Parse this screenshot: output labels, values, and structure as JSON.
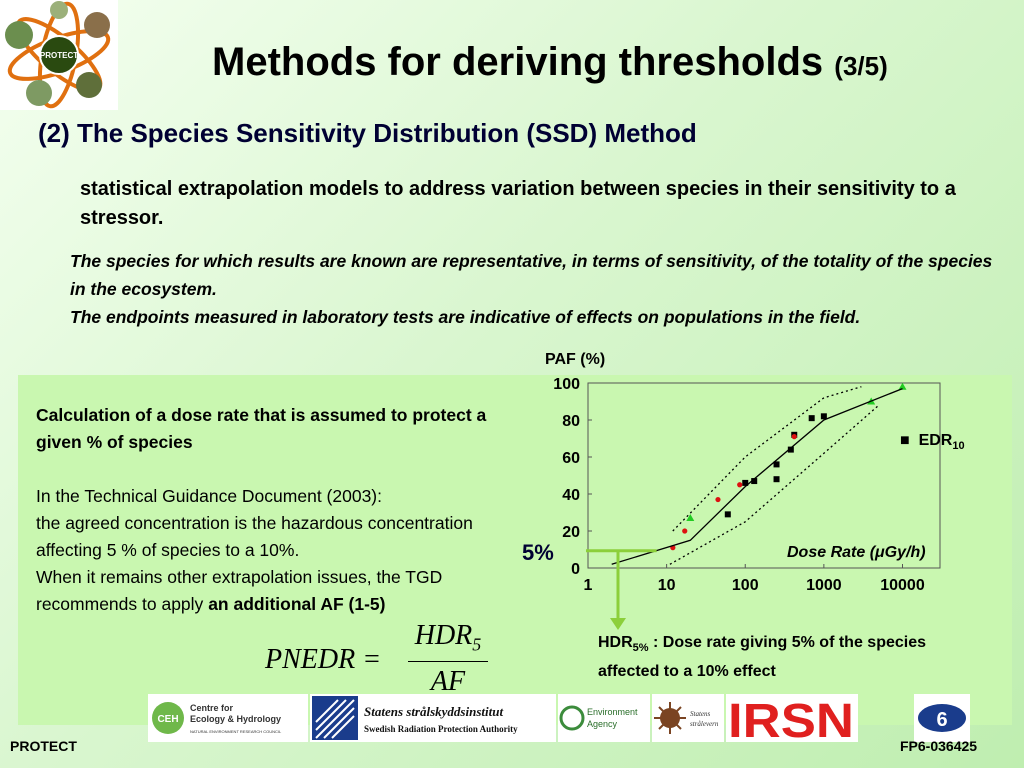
{
  "slide": {
    "title": "Methods for deriving thresholds",
    "title_suffix": "(3/5)",
    "subtitle": "(2) The Species Sensitivity Distribution (SSD) Method",
    "description": "statistical extrapolation models to address variation between species in their sensitivity to a stressor.",
    "assumption_1": "The species for which results are known are representative, in terms of sensitivity, of the totality of the species in the ecosystem.",
    "assumption_2": "The endpoints measured in laboratory tests are indicative of effects on populations in the field."
  },
  "left_panel": {
    "heading": "Calculation of a dose rate that is assumed to protect a given % of species",
    "line_1": "In the Technical Guidance Document (2003):",
    "line_2": "the agreed concentration is the hazardous concentration affecting 5 % of species to a 10%.",
    "line_3": "When it remains other extrapolation issues, the TGD recommends to apply",
    "emphasis": "an additional AF (1-5)"
  },
  "formula": {
    "lhs": "PNEDR =",
    "numerator": "HDR",
    "numerator_sub": "5",
    "denominator": "AF"
  },
  "chart": {
    "ylabel": "PAF (%)",
    "xlabel": "Dose Rate (μGy/h)",
    "y_ticks": [
      "100",
      "80",
      "60",
      "40",
      "20",
      "0"
    ],
    "x_ticks": [
      "1",
      "10",
      "100",
      "1000",
      "10000"
    ],
    "legend_text": "EDR",
    "legend_sub": "10",
    "five_pct_label": "5%"
  },
  "chart_data": {
    "type": "scatter",
    "xlabel": "Dose Rate (μGy/h)",
    "ylabel": "PAF (%)",
    "x_scale": "log",
    "xlim": [
      1,
      30000
    ],
    "ylim": [
      0,
      100
    ],
    "legend_placement": "right",
    "series": [
      {
        "name": "EDR10",
        "marker": "square",
        "color": "#000000",
        "points": [
          [
            60,
            29
          ],
          [
            100,
            46
          ],
          [
            130,
            47
          ],
          [
            250,
            48
          ],
          [
            250,
            56
          ],
          [
            380,
            64
          ],
          [
            420,
            72
          ],
          [
            700,
            81
          ],
          [
            1000,
            82
          ]
        ]
      },
      {
        "marker": "circle",
        "color": "#dd1111",
        "points": [
          [
            12,
            11
          ],
          [
            17,
            20
          ],
          [
            45,
            37
          ],
          [
            85,
            45
          ],
          [
            420,
            71
          ]
        ]
      },
      {
        "marker": "triangle",
        "color": "#22cc22",
        "points": [
          [
            20,
            27
          ],
          [
            4000,
            90
          ],
          [
            10000,
            98
          ]
        ]
      },
      {
        "line": "fit",
        "style": "solid",
        "color": "#000000",
        "points": [
          [
            2,
            2
          ],
          [
            20,
            15
          ],
          [
            100,
            44
          ],
          [
            1000,
            80
          ],
          [
            10000,
            97
          ]
        ]
      },
      {
        "line": "band",
        "style": "dotted",
        "color": "#000000",
        "points": [
          [
            11,
            2
          ],
          [
            100,
            25
          ],
          [
            1000,
            62
          ],
          [
            5000,
            88
          ]
        ]
      },
      {
        "line": "band",
        "style": "dotted",
        "color": "#000000",
        "points": [
          [
            12,
            20
          ],
          [
            100,
            60
          ],
          [
            1000,
            92
          ],
          [
            3000,
            98
          ]
        ]
      }
    ]
  },
  "hdr_note": {
    "label": "HDR",
    "sub": "5%",
    "text": ": Dose rate giving 5% of the species affected to a 10% effect"
  },
  "footer": {
    "left": "PROTECT",
    "right": "FP6-036425"
  },
  "logos": {
    "protect": "PROTECT",
    "ceh_line1": "Centre for",
    "ceh_line2": "Ecology & Hydrology",
    "ceh_sub": "NATURAL ENVIRONMENT RESEARCH COUNCIL",
    "ssi_line1": "Statens strålskyddsinstitut",
    "ssi_line2": "Swedish Radiation Protection Authority",
    "ea_line1": "Environment",
    "ea_line2": "Agency",
    "sv_line1": "Statens",
    "sv_line2": "strålevern",
    "irsn": "IRSN"
  },
  "colors": {
    "accent_green": "#8ccf3a",
    "panel_bg": "#c9f7b0",
    "red_points": "#dd1111",
    "green_points": "#22cc22",
    "irsn_red": "#e0201f"
  }
}
